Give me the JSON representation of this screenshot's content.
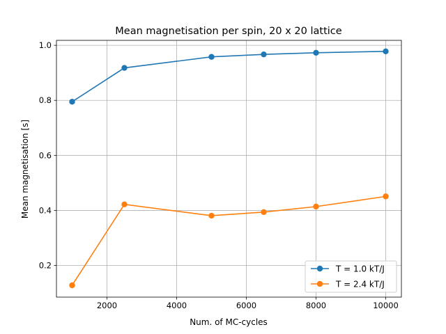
{
  "chart_data": {
    "type": "line",
    "title": "Mean magnetisation per spin, 20 x 20 lattice",
    "xlabel": "Num. of MC-cycles",
    "ylabel": "Mean magnetisation [s]",
    "xlim": [
      550,
      10450
    ],
    "ylim": [
      0.085,
      1.018
    ],
    "xticks": [
      2000,
      4000,
      6000,
      8000,
      10000
    ],
    "yticks": [
      0.2,
      0.4,
      0.6,
      0.8,
      1.0
    ],
    "xtick_labels": [
      "2000",
      "4000",
      "6000",
      "8000",
      "10000"
    ],
    "ytick_labels": [
      "0.2",
      "0.4",
      "0.6",
      "0.8",
      "1.0"
    ],
    "grid": true,
    "legend_position": "lower-right",
    "x": [
      1000,
      2500,
      5000,
      6500,
      8000,
      10000
    ],
    "series": [
      {
        "name": "T = 1.0 kT/J",
        "color": "#1f77b4",
        "values": [
          0.795,
          0.918,
          0.958,
          0.967,
          0.973,
          0.978
        ]
      },
      {
        "name": "T = 2.4 kT/J",
        "color": "#ff7f0e",
        "values": [
          0.128,
          0.422,
          0.381,
          0.394,
          0.414,
          0.451
        ]
      }
    ]
  }
}
